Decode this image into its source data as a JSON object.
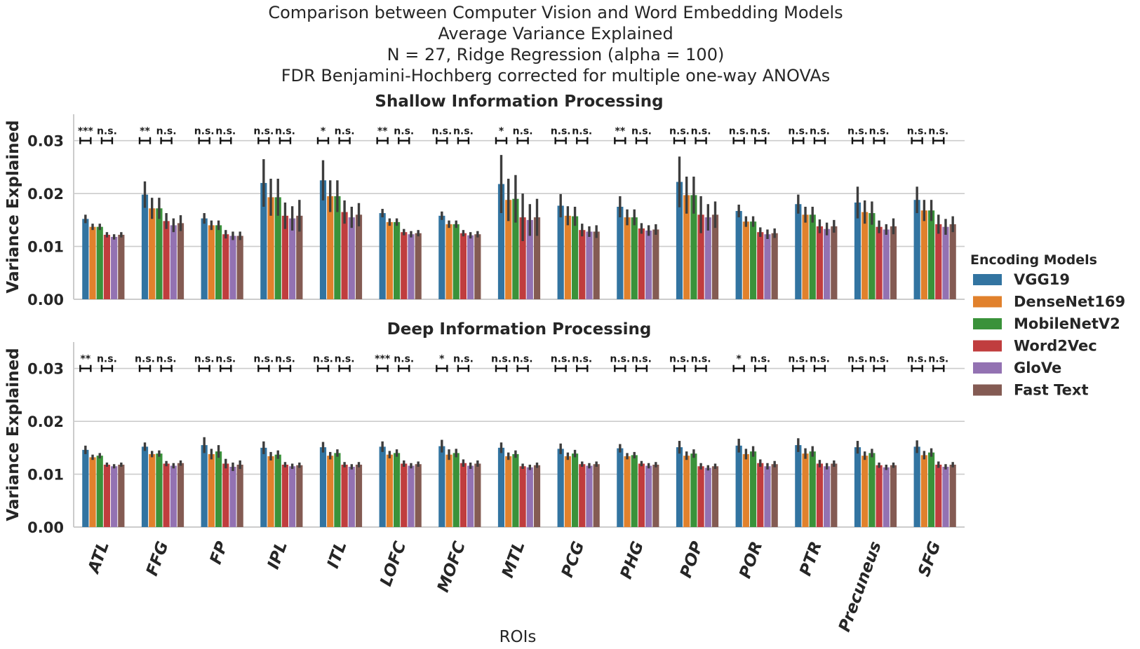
{
  "figure": {
    "title_lines": [
      "Comparison between Computer Vision and Word Embedding Models",
      "Average Variance Explained",
      "N = 27, Ridge Regression (alpha = 100)",
      "FDR Benjamini-Hochberg corrected for multiple one-way ANOVAs"
    ]
  },
  "colors": {
    "VGG19": "#3274a1",
    "DenseNet169": "#e1812c",
    "MobileNetV2": "#3a923a",
    "Word2Vec": "#c03d3e",
    "GloVe": "#9372b2",
    "Fast Text": "#845b53"
  },
  "chart_data": [
    {
      "type": "bar",
      "title": "Shallow Information Processing",
      "xlabel": "",
      "ylabel": "Variance Explained",
      "ylim": [
        0,
        0.035
      ],
      "yticks": [
        "0.00",
        "0.01",
        "0.02",
        "0.03"
      ],
      "grid": true,
      "categories": [
        "ATL",
        "FFG",
        "FP",
        "IPL",
        "ITL",
        "LOFC",
        "MOFC",
        "MTL",
        "PCG",
        "PHG",
        "POP",
        "POR",
        "PTR",
        "Precuneus",
        "SFG"
      ],
      "series": [
        {
          "name": "VGG19",
          "values": [
            0.0152,
            0.0198,
            0.0153,
            0.022,
            0.0225,
            0.0163,
            0.0158,
            0.0218,
            0.0177,
            0.0175,
            0.0222,
            0.0167,
            0.018,
            0.0183,
            0.0188
          ],
          "err": [
            0.0008,
            0.0025,
            0.001,
            0.0045,
            0.0038,
            0.0008,
            0.0008,
            0.0055,
            0.0022,
            0.002,
            0.0048,
            0.0012,
            0.0018,
            0.003,
            0.0025
          ]
        },
        {
          "name": "DenseNet169",
          "values": [
            0.0137,
            0.0172,
            0.014,
            0.0193,
            0.0195,
            0.0146,
            0.0142,
            0.0188,
            0.0158,
            0.0155,
            0.0197,
            0.0147,
            0.016,
            0.0165,
            0.0168
          ],
          "err": [
            0.0006,
            0.002,
            0.0009,
            0.0035,
            0.003,
            0.0007,
            0.0007,
            0.004,
            0.0018,
            0.0015,
            0.0035,
            0.001,
            0.0015,
            0.0022,
            0.002
          ]
        },
        {
          "name": "MobileNetV2",
          "values": [
            0.0137,
            0.0172,
            0.014,
            0.0193,
            0.0195,
            0.0146,
            0.0142,
            0.019,
            0.0157,
            0.0155,
            0.0197,
            0.0147,
            0.016,
            0.0163,
            0.0168
          ],
          "err": [
            0.0006,
            0.002,
            0.0009,
            0.0035,
            0.003,
            0.0007,
            0.0007,
            0.0045,
            0.0018,
            0.0015,
            0.0035,
            0.001,
            0.0015,
            0.0022,
            0.002
          ]
        },
        {
          "name": "Word2Vec",
          "values": [
            0.0122,
            0.0148,
            0.0123,
            0.0158,
            0.0165,
            0.0127,
            0.0125,
            0.0155,
            0.0131,
            0.0134,
            0.016,
            0.0127,
            0.0138,
            0.0137,
            0.0142
          ],
          "err": [
            0.0005,
            0.0015,
            0.0008,
            0.0025,
            0.0022,
            0.0006,
            0.0006,
            0.0045,
            0.0012,
            0.001,
            0.0035,
            0.0009,
            0.0013,
            0.0012,
            0.0018
          ]
        },
        {
          "name": "GloVe",
          "values": [
            0.0118,
            0.014,
            0.012,
            0.0153,
            0.0155,
            0.0123,
            0.0121,
            0.015,
            0.0128,
            0.013,
            0.0155,
            0.0123,
            0.0133,
            0.0132,
            0.0137
          ],
          "err": [
            0.0005,
            0.0013,
            0.0008,
            0.0023,
            0.002,
            0.0006,
            0.0006,
            0.003,
            0.001,
            0.001,
            0.0025,
            0.0009,
            0.0012,
            0.001,
            0.0015
          ]
        },
        {
          "name": "Fast Text",
          "values": [
            0.0122,
            0.0144,
            0.012,
            0.0158,
            0.016,
            0.0125,
            0.0123,
            0.0155,
            0.0128,
            0.0132,
            0.016,
            0.0125,
            0.0138,
            0.0138,
            0.0142
          ],
          "err": [
            0.0005,
            0.0015,
            0.0008,
            0.003,
            0.0022,
            0.0006,
            0.0006,
            0.0035,
            0.0012,
            0.001,
            0.0025,
            0.0009,
            0.0012,
            0.0015,
            0.0015
          ]
        }
      ],
      "significance": [
        [
          "***",
          "n.s."
        ],
        [
          "**",
          "n.s."
        ],
        [
          "n.s.",
          "n.s."
        ],
        [
          "n.s.",
          "n.s."
        ],
        [
          "*",
          "n.s."
        ],
        [
          "**",
          "n.s."
        ],
        [
          "n.s.",
          "n.s."
        ],
        [
          "*",
          "n.s."
        ],
        [
          "n.s.",
          "n.s."
        ],
        [
          "**",
          "n.s."
        ],
        [
          "n.s.",
          "n.s."
        ],
        [
          "n.s.",
          "n.s."
        ],
        [
          "n.s.",
          "n.s."
        ],
        [
          "n.s.",
          "n.s."
        ],
        [
          "n.s.",
          "n.s."
        ]
      ]
    },
    {
      "type": "bar",
      "title": "Deep Information Processing",
      "xlabel": "ROIs",
      "ylabel": "Variance Explained",
      "ylim": [
        0,
        0.035
      ],
      "yticks": [
        "0.00",
        "0.01",
        "0.02",
        "0.03"
      ],
      "grid": true,
      "categories": [
        "ATL",
        "FFG",
        "FP",
        "IPL",
        "ITL",
        "LOFC",
        "MOFC",
        "MTL",
        "PCG",
        "PHG",
        "POP",
        "POR",
        "PTR",
        "Precuneus",
        "SFG"
      ],
      "series": [
        {
          "name": "VGG19",
          "values": [
            0.0146,
            0.0152,
            0.0155,
            0.015,
            0.0151,
            0.0152,
            0.0153,
            0.015,
            0.0148,
            0.0149,
            0.0151,
            0.0154,
            0.0155,
            0.0151,
            0.0152
          ],
          "err": [
            0.0008,
            0.0008,
            0.0015,
            0.0012,
            0.001,
            0.001,
            0.0012,
            0.001,
            0.001,
            0.0008,
            0.0012,
            0.0013,
            0.0013,
            0.0012,
            0.0012
          ]
        },
        {
          "name": "DenseNet169",
          "values": [
            0.0132,
            0.0138,
            0.0138,
            0.0134,
            0.0135,
            0.0137,
            0.0137,
            0.0134,
            0.0134,
            0.0134,
            0.0135,
            0.0138,
            0.0139,
            0.0135,
            0.0136
          ],
          "err": [
            0.0005,
            0.0006,
            0.001,
            0.0008,
            0.0007,
            0.0007,
            0.001,
            0.0007,
            0.0007,
            0.0006,
            0.0008,
            0.001,
            0.001,
            0.0008,
            0.0008
          ]
        },
        {
          "name": "MobileNetV2",
          "values": [
            0.0135,
            0.0139,
            0.0143,
            0.0137,
            0.014,
            0.014,
            0.014,
            0.0138,
            0.0139,
            0.0136,
            0.0139,
            0.0143,
            0.0143,
            0.014,
            0.0141
          ],
          "err": [
            0.0005,
            0.0006,
            0.0012,
            0.0008,
            0.0007,
            0.0007,
            0.0008,
            0.0007,
            0.0007,
            0.0006,
            0.0008,
            0.001,
            0.001,
            0.0008,
            0.0008
          ]
        },
        {
          "name": "Word2Vec",
          "values": [
            0.0118,
            0.012,
            0.012,
            0.0118,
            0.0118,
            0.012,
            0.0121,
            0.0115,
            0.0119,
            0.012,
            0.0115,
            0.0121,
            0.012,
            0.0117,
            0.0118
          ],
          "err": [
            0.0004,
            0.0005,
            0.0009,
            0.0005,
            0.0005,
            0.0006,
            0.0007,
            0.0005,
            0.0005,
            0.0005,
            0.0006,
            0.0007,
            0.0007,
            0.0005,
            0.0006
          ]
        },
        {
          "name": "GloVe",
          "values": [
            0.0115,
            0.0116,
            0.0114,
            0.0115,
            0.0114,
            0.0116,
            0.0116,
            0.0113,
            0.0116,
            0.0116,
            0.0112,
            0.0115,
            0.0115,
            0.0113,
            0.0114
          ],
          "err": [
            0.0004,
            0.0005,
            0.0008,
            0.0005,
            0.0005,
            0.0005,
            0.0006,
            0.0005,
            0.0005,
            0.0005,
            0.0005,
            0.0006,
            0.0006,
            0.0005,
            0.0005
          ]
        },
        {
          "name": "Fast Text",
          "values": [
            0.0118,
            0.0121,
            0.0118,
            0.0117,
            0.0118,
            0.0119,
            0.012,
            0.0117,
            0.0119,
            0.0118,
            0.0115,
            0.0119,
            0.012,
            0.0117,
            0.0118
          ],
          "err": [
            0.0004,
            0.0005,
            0.0008,
            0.0005,
            0.0005,
            0.0005,
            0.0006,
            0.0005,
            0.0005,
            0.0005,
            0.0005,
            0.0006,
            0.0006,
            0.0005,
            0.0005
          ]
        }
      ],
      "significance": [
        [
          "**",
          "n.s."
        ],
        [
          "n.s.",
          "n.s."
        ],
        [
          "n.s.",
          "n.s."
        ],
        [
          "n.s.",
          "n.s."
        ],
        [
          "n.s.",
          "n.s."
        ],
        [
          "***",
          "n.s."
        ],
        [
          "*",
          "n.s."
        ],
        [
          "n.s.",
          "n.s."
        ],
        [
          "n.s.",
          "n.s."
        ],
        [
          "n.s.",
          "n.s."
        ],
        [
          "n.s.",
          "n.s."
        ],
        [
          "*",
          "n.s."
        ],
        [
          "n.s.",
          "n.s."
        ],
        [
          "n.s.",
          "n.s."
        ],
        [
          "n.s.",
          "n.s."
        ]
      ]
    }
  ],
  "legend": {
    "title": "Encoding Models",
    "placement": "right",
    "items": [
      "VGG19",
      "DenseNet169",
      "MobileNetV2",
      "Word2Vec",
      "GloVe",
      "Fast Text"
    ]
  }
}
